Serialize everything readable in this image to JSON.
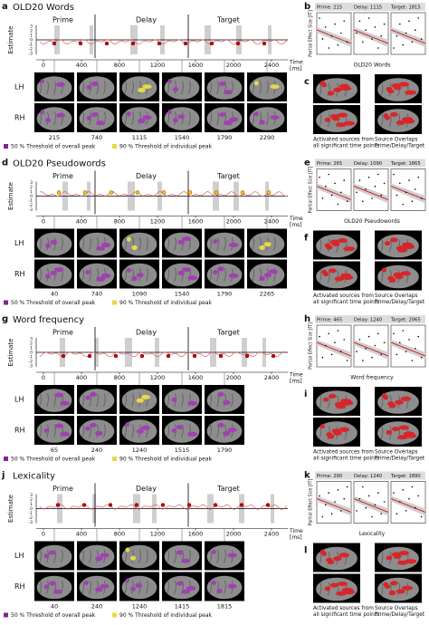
{
  "common": {
    "phases": [
      "Prime",
      "Delay",
      "Target"
    ],
    "y_axis_label": "Estimate",
    "time_label": "Time",
    "time_unit": "[ms]",
    "xticks": [
      0,
      400,
      800,
      1200,
      1600,
      2000,
      2400
    ],
    "yticks": [
      3,
      2,
      1,
      0,
      -1,
      -2,
      -3
    ],
    "hemispheres": [
      "LH",
      "RH"
    ],
    "legend": [
      "50 % Threshold of overall peak",
      "90 % Threshold of individual peak"
    ],
    "effect_label": "Partial Effect Size [fT]",
    "source_captions": [
      [
        "Activated sources from",
        "all significant time points"
      ],
      [
        "Source Overlaps",
        "Prime/Delay/Target"
      ]
    ]
  },
  "sections": [
    {
      "letter": "a",
      "title": "OLD20 Words",
      "effect_letter": "b",
      "effect_header": [
        "Prime: 215",
        "Delay: 1115",
        "Target: 1815"
      ],
      "effect_x_label": "OLD20 Words",
      "sources_letter": "c",
      "times": [
        215,
        740,
        1115,
        1540,
        1790,
        2290
      ]
    },
    {
      "letter": "d",
      "title": "OLD20 Pseudowords",
      "effect_letter": "e",
      "effect_header": [
        "Prime: 265",
        "Delay: 1090",
        "Target: 1865"
      ],
      "effect_x_label": "OLD20 Pseudowords",
      "sources_letter": "f",
      "times": [
        40,
        740,
        1090,
        1540,
        1790,
        2265
      ]
    },
    {
      "letter": "g",
      "title": "Word frequency",
      "effect_letter": "h",
      "effect_header": [
        "Prime: 465",
        "Delay: 1240",
        "Target: 2065"
      ],
      "effect_x_label": "Word frequency",
      "sources_letter": "i",
      "times": [
        65,
        240,
        1240,
        1515,
        1790
      ]
    },
    {
      "letter": "j",
      "title": "Lexicality",
      "effect_letter": "k",
      "effect_header": [
        "Prime: 290",
        "Delay: 1240",
        "Target: 1890"
      ],
      "effect_x_label": "Lexicality",
      "sources_letter": "l",
      "times": [
        40,
        240,
        1240,
        1415,
        1815
      ]
    }
  ]
}
